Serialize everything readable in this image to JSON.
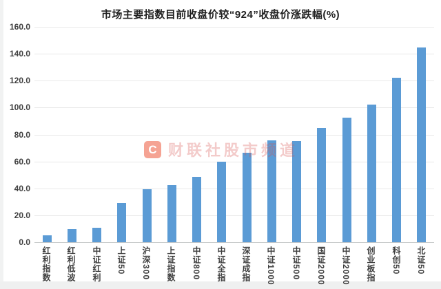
{
  "title": "市场主要指数目前收盘价较“924”收盘价涨跌幅(%)",
  "watermark": {
    "logo": "C",
    "text": "财联社股市频道"
  },
  "chart_data": {
    "type": "bar",
    "title": "市场主要指数目前收盘价较“924”收盘价涨跌幅(%)",
    "categories": [
      "红利指数",
      "红利低波",
      "中证红利",
      "上证50",
      "沪深300",
      "上证指数",
      "中证800",
      "中证全指",
      "深证成指",
      "中证1000",
      "中证500",
      "国证2000",
      "中证2000",
      "创业板指",
      "科创50",
      "北证50"
    ],
    "values": [
      5.0,
      9.6,
      10.8,
      29.2,
      39.3,
      42.3,
      48.6,
      59.7,
      66.6,
      75.5,
      75.0,
      84.8,
      92.3,
      102.2,
      122.3,
      144.5
    ],
    "xlabel": "",
    "ylabel": "",
    "ylim": [
      0,
      160
    ],
    "y_ticks": [
      0,
      20,
      40,
      60,
      80,
      100,
      120,
      140,
      160
    ],
    "y_tick_format": "one_decimal",
    "grid": true,
    "legend": "none",
    "bar_color": "#5B9BD5",
    "gridline_color": "#e8e8e8",
    "axis_line_color": "#c6c9c9",
    "label_color": "#404040"
  }
}
